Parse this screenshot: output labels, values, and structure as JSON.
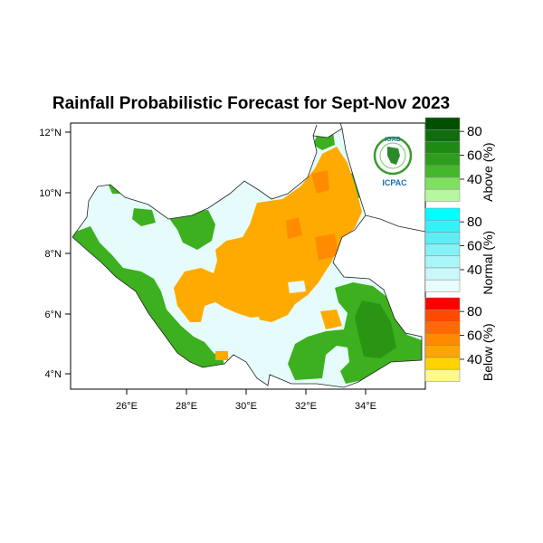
{
  "title": "Rainfall Probabilistic Forecast for Sept-Nov 2023",
  "logo": {
    "top_text": "IGAD",
    "bottom_text": "ICPAC"
  },
  "axes": {
    "x_ticks": [
      "26°E",
      "28°E",
      "30°E",
      "32°E",
      "34°E"
    ],
    "y_ticks": [
      "12°N",
      "10°N",
      "8°N",
      "6°N",
      "4°N"
    ]
  },
  "colors": {
    "above_40": "#3cb01e",
    "above_60": "#2a9514",
    "above_80": "#0a5a0a",
    "normal": "#e6fcfc",
    "below_40": "#ffaa00",
    "below_60": "#ff7a00",
    "below_80": "#ff0000",
    "near_normal_green": "#a8f08a"
  },
  "colorbar": {
    "groups": [
      {
        "title": "Above (%)",
        "labels": [
          "80",
          "60",
          "40"
        ],
        "colors": [
          "#005000",
          "#0e6e0e",
          "#1d8a14",
          "#2d9e1c",
          "#42b82a",
          "#7ee05f",
          "#b7f7a0"
        ]
      },
      {
        "title": "Normal (%)",
        "labels": [
          "80",
          "60",
          "40"
        ],
        "colors": [
          "#00ffff",
          "#33f3f9",
          "#5cedf5",
          "#86f1f6",
          "#a9f5f8",
          "#c9f8fa",
          "#e9fcfc"
        ]
      },
      {
        "title": "Below (%)",
        "labels": [
          "80",
          "60",
          "40"
        ],
        "colors": [
          "#ff0000",
          "#ff4a00",
          "#ff6a00",
          "#ff8a00",
          "#ffa500",
          "#ffd200",
          "#fff88a"
        ]
      }
    ]
  }
}
